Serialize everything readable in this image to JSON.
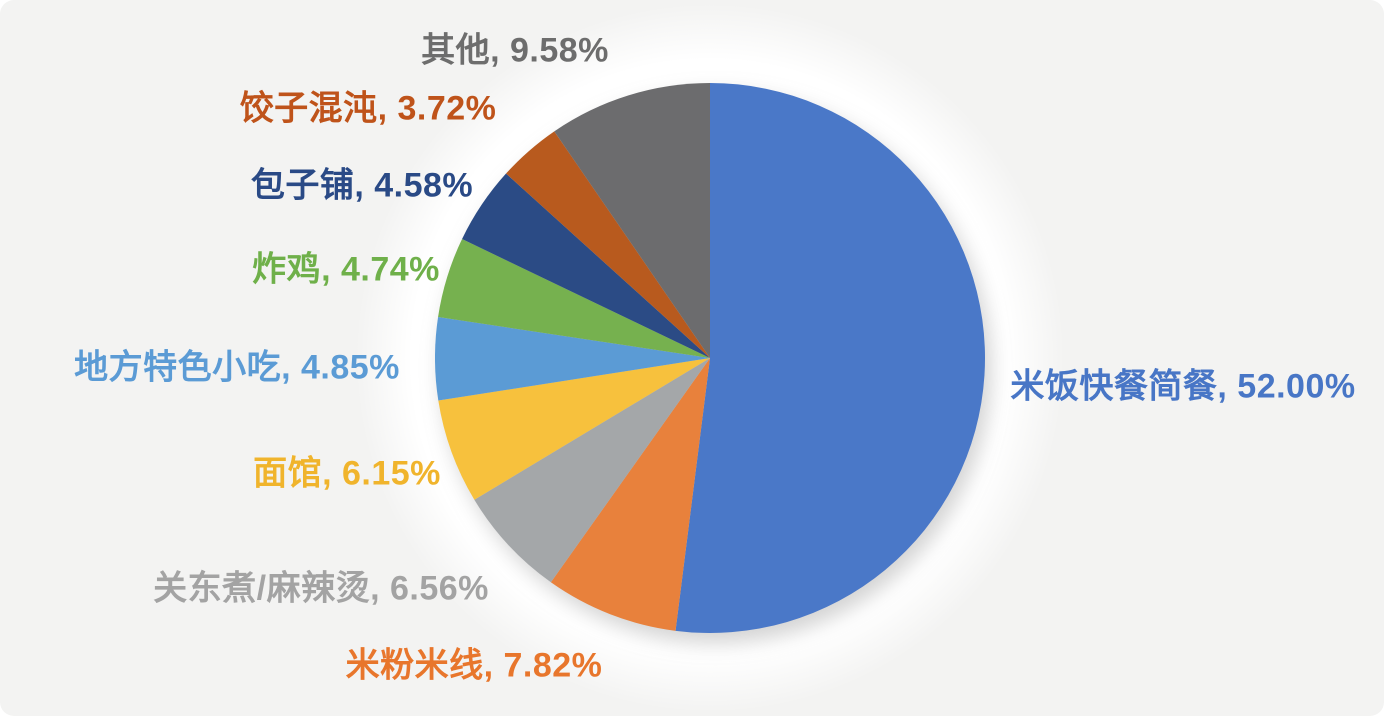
{
  "page": {
    "background_color": "#f3f3f2"
  },
  "chart_data": {
    "type": "pie",
    "title": "",
    "legend_position": "none",
    "labels_outside": true,
    "start_angle_deg": 0,
    "direction": "clockwise",
    "slices": [
      {
        "label": "米饭快餐简餐",
        "value": 52.0,
        "display": "米饭快餐简餐, 52.00%",
        "color": "#4A78C8",
        "label_color": "#4876C6"
      },
      {
        "label": "米粉米线",
        "value": 7.82,
        "display": "米粉米线, 7.82%",
        "color": "#E8813C",
        "label_color": "#E8762C"
      },
      {
        "label": "关东煮/麻辣烫",
        "value": 6.56,
        "display": "关东煮/麻辣烫, 6.56%",
        "color": "#A4A7A9",
        "label_color": "#A3A3A3"
      },
      {
        "label": "面馆",
        "value": 6.15,
        "display": "面馆, 6.15%",
        "color": "#F7C13D",
        "label_color": "#F0B42C"
      },
      {
        "label": "地方特色小吃",
        "value": 4.85,
        "display": "地方特色小吃, 4.85%",
        "color": "#5B9BD5",
        "label_color": "#5B9BD5"
      },
      {
        "label": "炸鸡",
        "value": 4.74,
        "display": "炸鸡, 4.74%",
        "color": "#76B14F",
        "label_color": "#6FB04A"
      },
      {
        "label": "包子铺",
        "value": 4.58,
        "display": "包子铺, 4.58%",
        "color": "#2B4B85",
        "label_color": "#2A4A86"
      },
      {
        "label": "饺子混沌",
        "value": 3.72,
        "display": "饺子混沌, 3.72%",
        "color": "#B85A1E",
        "label_color": "#BF531A"
      },
      {
        "label": "其他",
        "value": 9.58,
        "display": "其他, 9.58%",
        "color": "#6C6C6E",
        "label_color": "#6D6D6D"
      }
    ]
  }
}
